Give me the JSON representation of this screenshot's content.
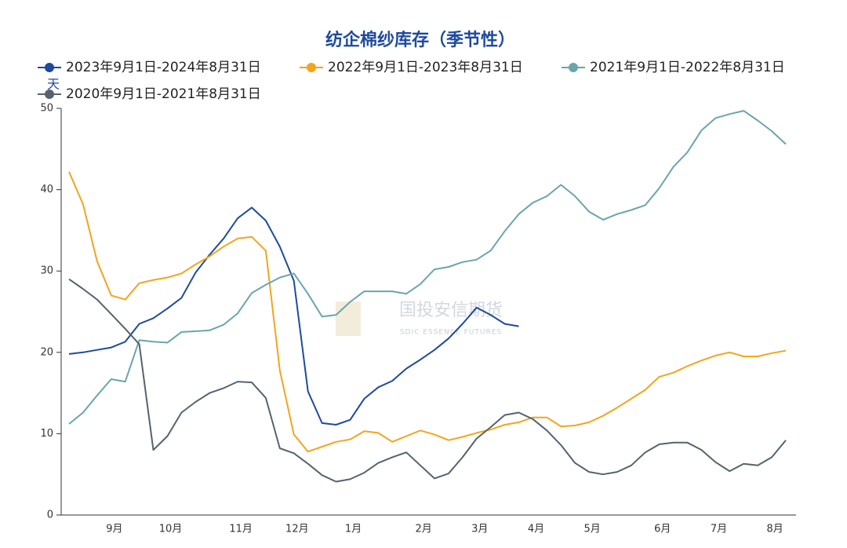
{
  "chart_data": {
    "type": "line",
    "title": "纺企棉纱库存（季节性）",
    "y_label": "天",
    "watermark": "国投安信期货",
    "watermark_sub": "SDIC ESSENCE FUTURES",
    "categories": [
      null,
      null,
      "9月",
      null,
      null,
      null,
      "10月",
      null,
      null,
      null,
      null,
      "11月",
      null,
      null,
      null,
      "12月",
      null,
      null,
      null,
      "1月",
      null,
      null,
      null,
      null,
      "2月",
      null,
      null,
      null,
      "3月",
      null,
      null,
      null,
      "4月",
      null,
      null,
      null,
      "5月",
      null,
      null,
      null,
      null,
      "6月",
      null,
      null,
      null,
      "7月",
      null,
      null,
      null,
      "8月",
      null,
      null
    ],
    "ylim": [
      0,
      50
    ],
    "yticks": [
      0,
      10,
      20,
      30,
      40,
      50
    ],
    "grid": false,
    "legend": "top",
    "series": [
      {
        "name": "2023年9月1日-2024年8月31日",
        "color": "#1e4a9e",
        "values": [
          19.8,
          20.0,
          20.3,
          20.6,
          21.3,
          23.5,
          24.2,
          25.4,
          26.7,
          29.8,
          32.0,
          34.0,
          36.5,
          37.8,
          36.2,
          33.0,
          28.8,
          15.2,
          11.3,
          11.1,
          11.7,
          14.3,
          15.7,
          16.5,
          18.0,
          19.1,
          20.3,
          21.7,
          23.5,
          25.5,
          24.6,
          23.5,
          23.2,
          null,
          null,
          null,
          null,
          null,
          null,
          null,
          null,
          null,
          null,
          null,
          null,
          null,
          null,
          null,
          null,
          null,
          null,
          null
        ]
      },
      {
        "name": "2022年9月1日-2023年8月31日",
        "color": "#f2a51e",
        "values": [
          42.2,
          38.2,
          31.2,
          27.0,
          26.5,
          28.5,
          28.9,
          29.2,
          29.7,
          30.8,
          31.8,
          33.0,
          34.0,
          34.2,
          32.5,
          17.8,
          9.9,
          7.8,
          8.4,
          9.0,
          9.3,
          10.3,
          10.1,
          9.0,
          9.7,
          10.4,
          9.9,
          9.2,
          9.6,
          10.1,
          10.5,
          11.1,
          11.4,
          12.0,
          12.0,
          10.9,
          11.0,
          11.4,
          12.2,
          13.2,
          14.3,
          15.4,
          17.0,
          17.5,
          18.3,
          19.0,
          19.6,
          20.0,
          19.5,
          19.5,
          19.9,
          20.2
        ]
      },
      {
        "name": "2021年9月1日-2022年8月31日",
        "color": "#6aa5ac",
        "values": [
          11.2,
          12.6,
          14.7,
          16.7,
          16.4,
          21.5,
          21.3,
          21.2,
          22.5,
          22.6,
          22.7,
          23.4,
          24.8,
          27.3,
          28.3,
          29.2,
          29.7,
          27.2,
          24.4,
          24.6,
          26.2,
          27.5,
          27.5,
          27.5,
          27.2,
          28.4,
          30.2,
          30.5,
          31.1,
          31.4,
          32.5,
          34.9,
          37.0,
          38.4,
          39.2,
          40.6,
          39.2,
          37.3,
          36.3,
          37.0,
          37.5,
          38.1,
          40.2,
          42.8,
          44.6,
          47.3,
          48.8,
          49.3,
          49.7,
          48.5,
          47.2,
          45.6
        ]
      },
      {
        "name": "2020年9月1日-2021年8月31日",
        "color": "#56636d",
        "values": [
          29.0,
          27.8,
          26.5,
          24.7,
          22.9,
          21.0,
          8.0,
          9.7,
          12.6,
          13.9,
          15.0,
          15.6,
          16.4,
          16.3,
          14.4,
          8.2,
          7.6,
          6.3,
          4.9,
          4.1,
          4.4,
          5.2,
          6.4,
          7.1,
          7.7,
          6.1,
          4.5,
          5.1,
          7.1,
          9.4,
          10.8,
          12.3,
          12.6,
          11.8,
          10.4,
          8.6,
          6.4,
          5.3,
          5.0,
          5.3,
          6.1,
          7.7,
          8.7,
          8.9,
          8.9,
          8.0,
          6.5,
          5.4,
          6.3,
          6.1,
          7.1,
          9.2
        ]
      }
    ]
  }
}
